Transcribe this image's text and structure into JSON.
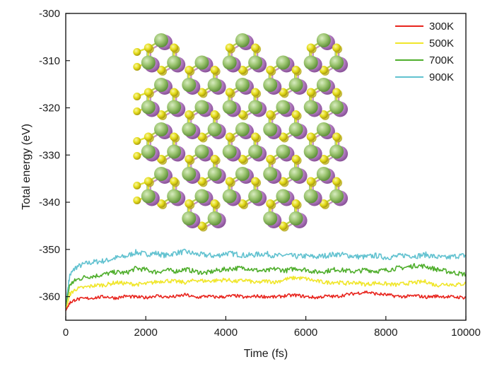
{
  "chart_data": {
    "type": "line",
    "title": "",
    "xlabel": "Time (fs)",
    "ylabel": "Total energy (eV)",
    "xlim": [
      0,
      10000
    ],
    "ylim": [
      -365,
      -300
    ],
    "xticks": [
      0,
      2000,
      4000,
      6000,
      8000,
      10000
    ],
    "xtick_labels": [
      "0",
      "2000",
      "4000",
      "6000",
      "8000",
      "10000"
    ],
    "yticks": [
      -300,
      -310,
      -320,
      -330,
      -340,
      -350,
      -360
    ],
    "ytick_labels": [
      "-300",
      "-310",
      "-320",
      "-330",
      "-340",
      "-350",
      "-360"
    ],
    "grid": false,
    "legend_position": "top-right",
    "x": [
      0,
      100,
      250,
      500,
      750,
      1000,
      1250,
      1500,
      1750,
      2000,
      2250,
      2500,
      2750,
      3000,
      3250,
      3500,
      3750,
      4000,
      4250,
      4500,
      4750,
      5000,
      5250,
      5500,
      5750,
      6000,
      6250,
      6500,
      6750,
      7000,
      7250,
      7500,
      7750,
      8000,
      8250,
      8500,
      8750,
      9000,
      9250,
      9500,
      9750,
      10000
    ],
    "series": [
      {
        "name": "300K",
        "color": "#e8251e",
        "values": [
          -363.0,
          -361.3,
          -360.6,
          -360.4,
          -360.2,
          -360.0,
          -360.3,
          -359.9,
          -360.1,
          -360.2,
          -359.8,
          -360.1,
          -360.0,
          -359.6,
          -360.2,
          -359.9,
          -360.1,
          -360.0,
          -359.8,
          -360.2,
          -359.9,
          -360.0,
          -360.1,
          -359.8,
          -359.7,
          -360.0,
          -360.2,
          -359.9,
          -360.0,
          -359.6,
          -359.3,
          -359.0,
          -359.4,
          -359.6,
          -359.9,
          -360.0,
          -359.8,
          -360.1,
          -359.9,
          -360.0,
          -360.1,
          -360.2
        ]
      },
      {
        "name": "500K",
        "color": "#f0e62a",
        "values": [
          -363.0,
          -359.5,
          -358.4,
          -358.0,
          -357.6,
          -357.5,
          -357.0,
          -357.2,
          -357.4,
          -357.3,
          -356.9,
          -356.6,
          -356.8,
          -357.0,
          -356.5,
          -356.7,
          -356.6,
          -356.4,
          -356.8,
          -356.5,
          -357.1,
          -356.7,
          -356.9,
          -356.3,
          -356.0,
          -356.2,
          -356.7,
          -357.0,
          -356.9,
          -357.2,
          -357.0,
          -357.4,
          -357.1,
          -357.3,
          -357.5,
          -357.2,
          -357.0,
          -356.8,
          -357.6,
          -357.3,
          -357.5,
          -357.2
        ]
      },
      {
        "name": "700K",
        "color": "#4fae2c",
        "values": [
          -362.0,
          -357.5,
          -356.5,
          -355.8,
          -355.6,
          -355.2,
          -354.8,
          -355.0,
          -354.0,
          -354.3,
          -354.8,
          -354.4,
          -354.6,
          -354.2,
          -354.7,
          -355.0,
          -354.5,
          -354.2,
          -354.0,
          -353.9,
          -354.4,
          -354.6,
          -354.1,
          -354.5,
          -354.0,
          -354.3,
          -354.8,
          -354.6,
          -354.2,
          -354.5,
          -354.7,
          -354.3,
          -354.6,
          -354.4,
          -354.0,
          -353.8,
          -353.4,
          -353.6,
          -354.2,
          -354.6,
          -355.0,
          -355.3
        ]
      },
      {
        "name": "900K",
        "color": "#62c2d0",
        "values": [
          -361.5,
          -355.5,
          -353.8,
          -353.0,
          -352.6,
          -352.4,
          -351.8,
          -351.5,
          -350.6,
          -351.0,
          -350.8,
          -351.3,
          -350.7,
          -350.5,
          -351.0,
          -351.2,
          -351.4,
          -350.8,
          -351.0,
          -351.3,
          -351.1,
          -350.9,
          -351.4,
          -351.2,
          -351.5,
          -351.4,
          -351.6,
          -351.3,
          -351.0,
          -351.2,
          -351.5,
          -351.6,
          -351.3,
          -351.7,
          -351.5,
          -351.2,
          -351.4,
          -351.1,
          -351.6,
          -351.8,
          -351.4,
          -351.3
        ]
      }
    ]
  },
  "inset": {
    "label": "",
    "colors": {
      "bond": "#e0e236",
      "bond_alt": "#c593c7",
      "atom_green": "#98c26c",
      "atom_purple": "#b883c6",
      "atom_yellow": "#e4dc1a"
    }
  }
}
